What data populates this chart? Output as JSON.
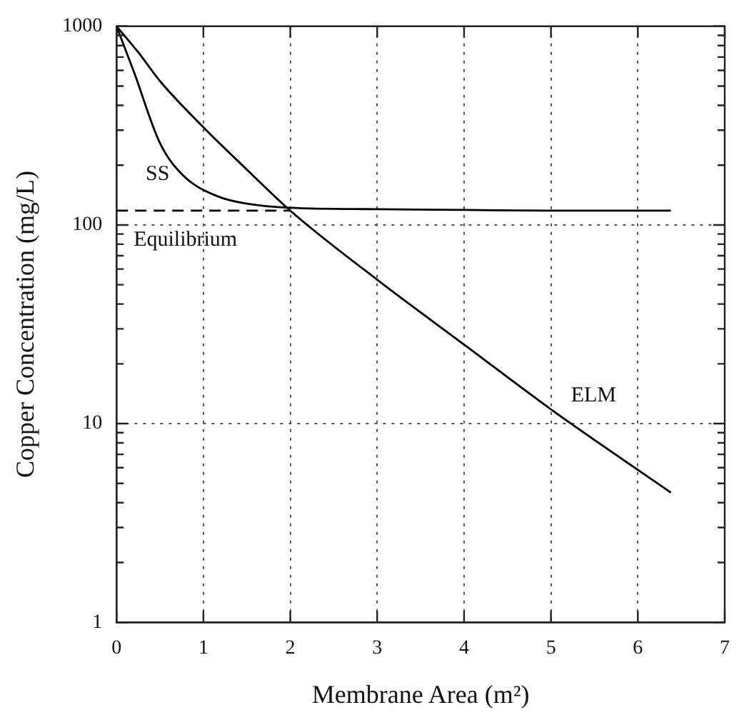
{
  "chart_data": {
    "type": "line",
    "xlabel": "Membrane Area (m²)",
    "ylabel": "Copper Concentration (mg/L)",
    "log": "y",
    "xlim": [
      0,
      7
    ],
    "xticks": [
      0,
      1,
      2,
      3,
      4,
      5,
      6,
      7
    ],
    "ylim": [
      1,
      1000
    ],
    "yticks": [
      1,
      {
        "value": 2,
        "label": null
      },
      {
        "value": 3,
        "label": null
      },
      {
        "value": 4,
        "label": null
      },
      {
        "value": 5,
        "label": null
      },
      {
        "value": 6,
        "label": null
      },
      {
        "value": 7,
        "label": null
      },
      {
        "value": 8,
        "label": null
      },
      {
        "value": 9,
        "label": null
      },
      10,
      {
        "value": 20,
        "label": null
      },
      {
        "value": 30,
        "label": null
      },
      {
        "value": 40,
        "label": null
      },
      {
        "value": 50,
        "label": null
      },
      {
        "value": 60,
        "label": null
      },
      {
        "value": 70,
        "label": null
      },
      {
        "value": 80,
        "label": null
      },
      {
        "value": 90,
        "label": null
      },
      100,
      {
        "value": 200,
        "label": null
      },
      {
        "value": 300,
        "label": null
      },
      {
        "value": 400,
        "label": null
      },
      {
        "value": 500,
        "label": null
      },
      {
        "value": 600,
        "label": null
      },
      {
        "value": 700,
        "label": null
      },
      {
        "value": 800,
        "label": null
      },
      {
        "value": 900,
        "label": null
      },
      1000
    ],
    "grid": true,
    "legend": false,
    "marker": "none",
    "series": [
      {
        "name": "ELM",
        "color": "#000000",
        "line_style": "solid",
        "x": [
          0,
          0.25,
          0.5,
          1,
          1.5,
          2,
          3,
          4,
          5,
          6.38
        ],
        "values": [
          1000,
          740,
          530,
          310,
          190,
          118,
          53,
          25,
          11.8,
          4.5
        ]
      },
      {
        "name": "SS",
        "color": "#000000",
        "line_style": "solid",
        "x": [
          0,
          0.2,
          0.5,
          0.77,
          1.17,
          1.5,
          2,
          3,
          4,
          5,
          6.38
        ],
        "values": [
          1000,
          590,
          258,
          177,
          139,
          128,
          122,
          120,
          119,
          118,
          118
        ]
      },
      {
        "name": "Equilibrium",
        "color": "#000000",
        "line_style": "dashed",
        "x": [
          0,
          2
        ],
        "values": [
          118,
          118
        ]
      }
    ]
  }
}
